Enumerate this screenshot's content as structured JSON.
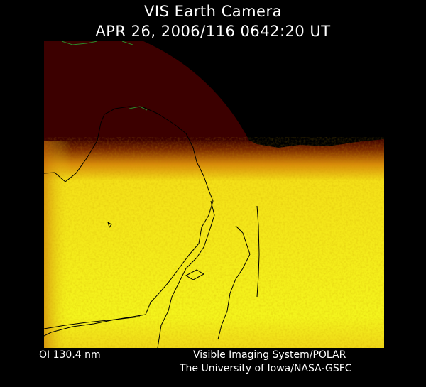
{
  "header": {
    "title": "VIS Earth Camera",
    "timestamp": "APR 26, 2006/116 0642:20 UT"
  },
  "footer": {
    "filter": "OI  130.4 nm",
    "instrument": "Visible Imaging System/POLAR",
    "institution": "The University of Iowa/NASA-GSFC"
  },
  "colors": {
    "background": "#000000",
    "disk_dark": "#3c0000",
    "aurora_bright": "#f4f41c",
    "coastline_black": "#000000",
    "coastline_green": "#2a8a2a"
  }
}
